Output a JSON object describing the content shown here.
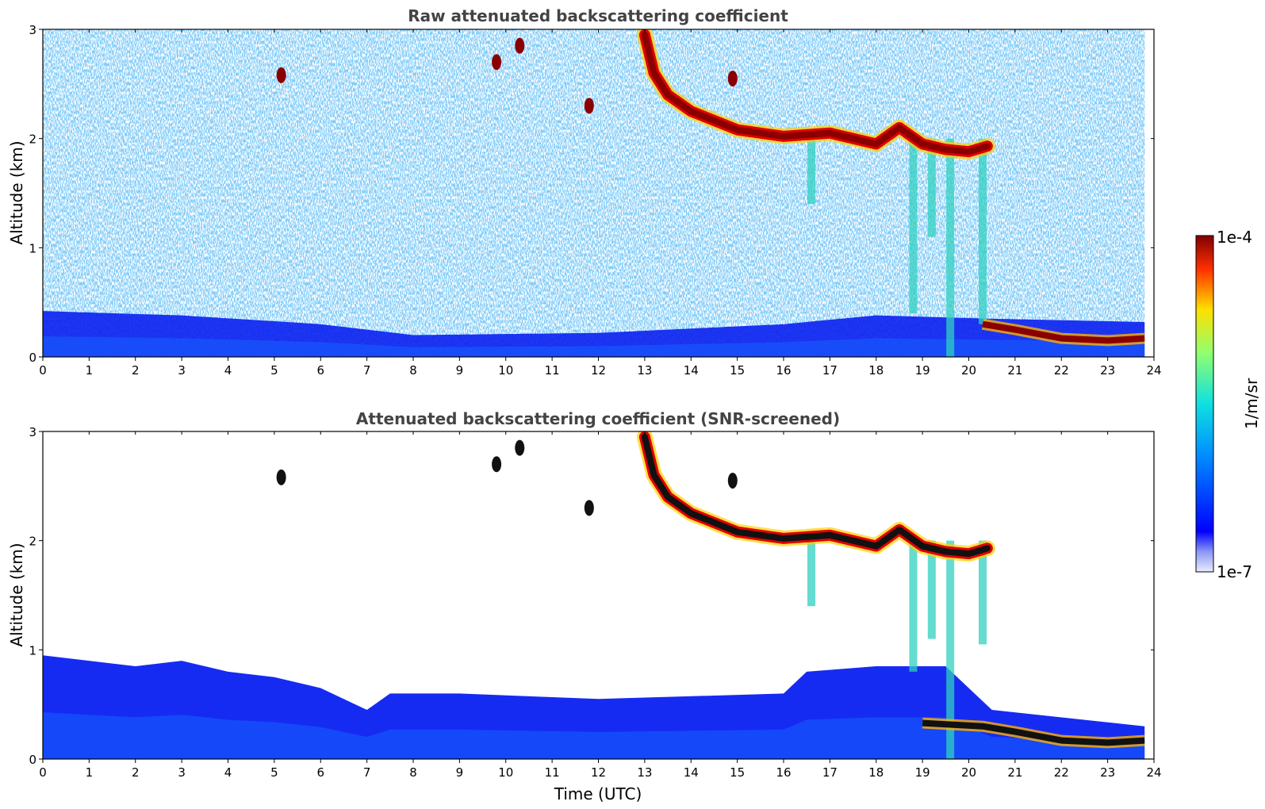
{
  "chart_data": [
    {
      "type": "heatmap",
      "title": "Raw attenuated backscattering coefficient",
      "xlabel": "",
      "ylabel": "Altitude (km)",
      "xlim": [
        0,
        24
      ],
      "ylim": [
        0,
        3
      ],
      "x_ticks": [
        "0",
        "1",
        "2",
        "3",
        "4",
        "5",
        "6",
        "7",
        "8",
        "9",
        "10",
        "11",
        "12",
        "13",
        "14",
        "15",
        "16",
        "17",
        "18",
        "19",
        "20",
        "21",
        "22",
        "23",
        "24"
      ],
      "y_ticks": [
        "0",
        "1",
        "2",
        "3"
      ],
      "data_end_hour": 23.8,
      "features": {
        "surface_layer": [
          {
            "x": 0,
            "top": 0.42
          },
          {
            "x": 3,
            "top": 0.38
          },
          {
            "x": 6,
            "top": 0.3
          },
          {
            "x": 8,
            "top": 0.2
          },
          {
            "x": 12,
            "top": 0.22
          },
          {
            "x": 16,
            "top": 0.3
          },
          {
            "x": 18,
            "top": 0.38
          },
          {
            "x": 20.5,
            "top": 0.35
          },
          {
            "x": 23.8,
            "top": 0.32
          }
        ],
        "cloud_layer": [
          {
            "x": 13.0,
            "y": 2.95
          },
          {
            "x": 13.2,
            "y": 2.6
          },
          {
            "x": 13.5,
            "y": 2.4
          },
          {
            "x": 14.0,
            "y": 2.25
          },
          {
            "x": 15.0,
            "y": 2.08
          },
          {
            "x": 16.0,
            "y": 2.02
          },
          {
            "x": 17.0,
            "y": 2.05
          },
          {
            "x": 18.0,
            "y": 1.95
          },
          {
            "x": 18.5,
            "y": 2.1
          },
          {
            "x": 19.0,
            "y": 1.95
          },
          {
            "x": 19.5,
            "y": 1.9
          },
          {
            "x": 20.0,
            "y": 1.88
          },
          {
            "x": 20.4,
            "y": 1.93
          }
        ],
        "low_cloud": [
          {
            "x": 20.3,
            "y": 0.3
          },
          {
            "x": 21.0,
            "y": 0.25
          },
          {
            "x": 22.0,
            "y": 0.17
          },
          {
            "x": 23.0,
            "y": 0.15
          },
          {
            "x": 23.8,
            "y": 0.17
          }
        ],
        "precip_streaks": [
          {
            "x": 16.6,
            "bottom": 1.4
          },
          {
            "x": 18.8,
            "bottom": 0.4
          },
          {
            "x": 19.2,
            "bottom": 1.1
          },
          {
            "x": 19.6,
            "bottom": 0.0
          },
          {
            "x": 20.3,
            "bottom": 0.3
          }
        ],
        "patches": [
          {
            "x": 5.15,
            "y": 2.58
          },
          {
            "x": 9.8,
            "y": 2.7
          },
          {
            "x": 10.3,
            "y": 2.85
          },
          {
            "x": 11.8,
            "y": 2.3
          },
          {
            "x": 14.9,
            "y": 2.55
          }
        ]
      }
    },
    {
      "type": "heatmap",
      "title": "Attenuated backscattering coefficient (SNR-screened)",
      "xlabel": "Time (UTC)",
      "ylabel": "Altitude (km)",
      "xlim": [
        0,
        24
      ],
      "ylim": [
        0,
        3
      ],
      "x_ticks": [
        "0",
        "1",
        "2",
        "3",
        "4",
        "5",
        "6",
        "7",
        "8",
        "9",
        "10",
        "11",
        "12",
        "13",
        "14",
        "15",
        "16",
        "17",
        "18",
        "19",
        "20",
        "21",
        "22",
        "23",
        "24"
      ],
      "y_ticks": [
        "0",
        "1",
        "2",
        "3"
      ],
      "data_end_hour": 23.8,
      "features": {
        "boundary_layer": [
          {
            "x": 0,
            "top": 0.95
          },
          {
            "x": 1,
            "top": 0.9
          },
          {
            "x": 2,
            "top": 0.85
          },
          {
            "x": 3,
            "top": 0.9
          },
          {
            "x": 4,
            "top": 0.8
          },
          {
            "x": 5,
            "top": 0.75
          },
          {
            "x": 6,
            "top": 0.65
          },
          {
            "x": 7,
            "top": 0.45
          },
          {
            "x": 7.5,
            "top": 0.6
          },
          {
            "x": 9,
            "top": 0.6
          },
          {
            "x": 12,
            "top": 0.55
          },
          {
            "x": 16,
            "top": 0.6
          },
          {
            "x": 16.5,
            "top": 0.8
          },
          {
            "x": 18,
            "top": 0.85
          },
          {
            "x": 19.5,
            "top": 0.85
          },
          {
            "x": 20.5,
            "top": 0.45
          },
          {
            "x": 23.8,
            "top": 0.3
          }
        ],
        "cloud_layer": [
          {
            "x": 13.0,
            "y": 2.95
          },
          {
            "x": 13.2,
            "y": 2.6
          },
          {
            "x": 13.5,
            "y": 2.4
          },
          {
            "x": 14.0,
            "y": 2.25
          },
          {
            "x": 15.0,
            "y": 2.08
          },
          {
            "x": 16.0,
            "y": 2.02
          },
          {
            "x": 17.0,
            "y": 2.05
          },
          {
            "x": 18.0,
            "y": 1.95
          },
          {
            "x": 18.5,
            "y": 2.1
          },
          {
            "x": 19.0,
            "y": 1.95
          },
          {
            "x": 19.5,
            "y": 1.9
          },
          {
            "x": 20.0,
            "y": 1.88
          },
          {
            "x": 20.4,
            "y": 1.93
          }
        ],
        "low_cloud": [
          {
            "x": 19.0,
            "y": 0.33
          },
          {
            "x": 20.3,
            "y": 0.3
          },
          {
            "x": 21.0,
            "y": 0.25
          },
          {
            "x": 22.0,
            "y": 0.17
          },
          {
            "x": 23.0,
            "y": 0.15
          },
          {
            "x": 23.8,
            "y": 0.17
          }
        ],
        "precip_streaks": [
          {
            "x": 16.6,
            "bottom": 1.4
          },
          {
            "x": 18.8,
            "bottom": 0.8
          },
          {
            "x": 19.2,
            "bottom": 1.1
          },
          {
            "x": 19.6,
            "bottom": 0.0
          },
          {
            "x": 20.3,
            "bottom": 1.05
          }
        ],
        "patches": [
          {
            "x": 5.15,
            "y": 2.58
          },
          {
            "x": 9.8,
            "y": 2.7
          },
          {
            "x": 10.3,
            "y": 2.85
          },
          {
            "x": 11.8,
            "y": 2.3
          },
          {
            "x": 14.9,
            "y": 2.55
          }
        ]
      }
    }
  ],
  "colorbar": {
    "max_label": "1e-4",
    "min_label": "1e-7",
    "label": "1/m/sr",
    "colormap": "jet",
    "scale": "log"
  },
  "colors": {
    "surface": "#0a20f0",
    "surface_light": "#5577ff",
    "cloud_core": "#8a0000",
    "cloud_edge": "#e00000",
    "screened_core": "#111111",
    "precip": "#30d0c0",
    "title": "#444444"
  }
}
